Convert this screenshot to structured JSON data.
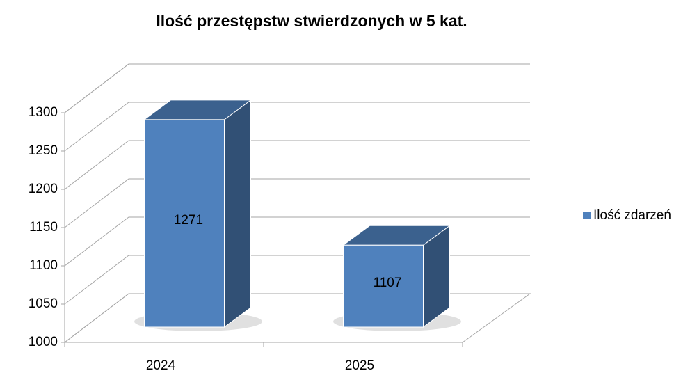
{
  "chart_data": {
    "type": "bar3d",
    "title": "Ilość przestępstw stwierdzonych w 5 kat.",
    "categories": [
      "2024",
      "2025"
    ],
    "series": [
      {
        "name": "Ilość zdarzeń",
        "color": "#4f81bd",
        "values": [
          1271,
          1107
        ]
      }
    ],
    "ylim": [
      1000,
      1300
    ],
    "yticks": [
      1000,
      1050,
      1100,
      1150,
      1200,
      1250,
      1300
    ],
    "grid": true,
    "legend": "right"
  }
}
